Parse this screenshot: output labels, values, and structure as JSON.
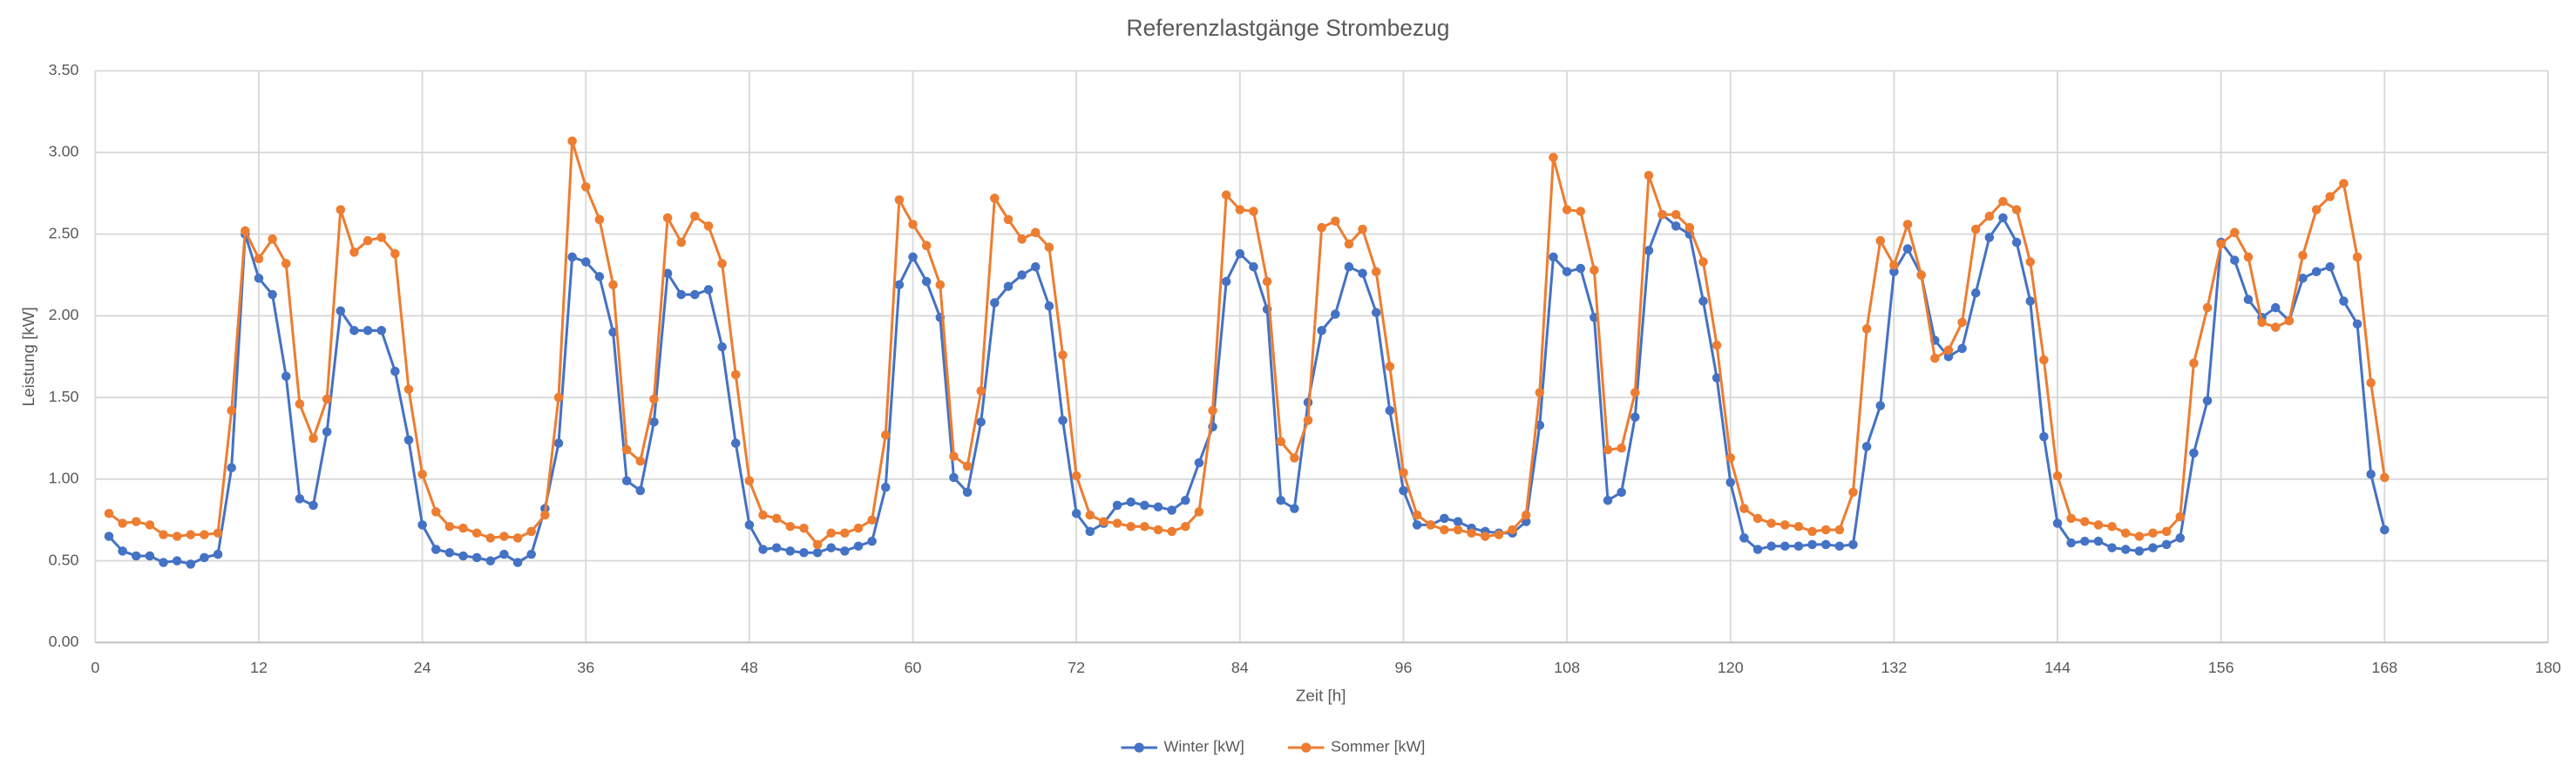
{
  "chart_data": {
    "type": "line",
    "title": "Referenzlastgänge Strombezug",
    "x_label": "Zeit [h]",
    "y_label": "Leistung [kW]",
    "x": [
      1,
      2,
      3,
      4,
      5,
      6,
      7,
      8,
      9,
      10,
      11,
      12,
      13,
      14,
      15,
      16,
      17,
      18,
      19,
      20,
      21,
      22,
      23,
      24,
      25,
      26,
      27,
      28,
      29,
      30,
      31,
      32,
      33,
      34,
      35,
      36,
      37,
      38,
      39,
      40,
      41,
      42,
      43,
      44,
      45,
      46,
      47,
      48,
      49,
      50,
      51,
      52,
      53,
      54,
      55,
      56,
      57,
      58,
      59,
      60,
      61,
      62,
      63,
      64,
      65,
      66,
      67,
      68,
      69,
      70,
      71,
      72,
      73,
      74,
      75,
      76,
      77,
      78,
      79,
      80,
      81,
      82,
      83,
      84,
      85,
      86,
      87,
      88,
      89,
      90,
      91,
      92,
      93,
      94,
      95,
      96,
      97,
      98,
      99,
      100,
      101,
      102,
      103,
      104,
      105,
      106,
      107,
      108,
      109,
      110,
      111,
      112,
      113,
      114,
      115,
      116,
      117,
      118,
      119,
      120,
      121,
      122,
      123,
      124,
      125,
      126,
      127,
      128,
      129,
      130,
      131,
      132,
      133,
      134,
      135,
      136,
      137,
      138,
      139,
      140,
      141,
      142,
      143,
      144,
      145,
      146,
      147,
      148,
      149,
      150,
      151,
      152,
      153,
      154,
      155,
      156,
      157,
      158,
      159,
      160,
      161,
      162,
      163,
      164,
      165,
      166,
      167,
      168
    ],
    "series": [
      {
        "name": "Winter [kW]",
        "color": "#4472c4",
        "values": [
          0.65,
          0.56,
          0.53,
          0.53,
          0.49,
          0.5,
          0.48,
          0.52,
          0.54,
          1.07,
          2.5,
          2.23,
          2.13,
          1.63,
          0.88,
          0.84,
          1.29,
          2.03,
          1.91,
          1.91,
          1.91,
          1.66,
          1.24,
          0.72,
          0.57,
          0.55,
          0.53,
          0.52,
          0.5,
          0.54,
          0.49,
          0.54,
          0.82,
          1.22,
          2.36,
          2.33,
          2.24,
          1.9,
          0.99,
          0.93,
          1.35,
          2.26,
          2.13,
          2.13,
          2.16,
          1.81,
          1.22,
          0.72,
          0.57,
          0.58,
          0.56,
          0.55,
          0.55,
          0.58,
          0.56,
          0.59,
          0.62,
          0.95,
          2.19,
          2.36,
          2.21,
          1.99,
          1.01,
          0.92,
          1.35,
          2.08,
          2.18,
          2.25,
          2.3,
          2.06,
          1.36,
          0.79,
          0.68,
          0.73,
          0.84,
          0.86,
          0.84,
          0.83,
          0.81,
          0.87,
          1.1,
          1.32,
          2.21,
          2.38,
          2.3,
          2.04,
          0.87,
          0.82,
          1.47,
          1.91,
          2.01,
          2.3,
          2.26,
          2.02,
          1.42,
          0.93,
          0.72,
          0.72,
          0.76,
          0.74,
          0.7,
          0.68,
          0.67,
          0.67,
          0.74,
          1.33,
          2.36,
          2.27,
          2.29,
          1.99,
          0.87,
          0.92,
          1.38,
          2.4,
          2.62,
          2.55,
          2.5,
          2.09,
          1.62,
          0.98,
          0.64,
          0.57,
          0.59,
          0.59,
          0.59,
          0.6,
          0.6,
          0.59,
          0.6,
          1.2,
          1.45,
          2.27,
          2.41,
          2.25,
          1.85,
          1.75,
          1.8,
          2.14,
          2.48,
          2.6,
          2.45,
          2.09,
          1.26,
          0.73,
          0.61,
          0.62,
          0.62,
          0.58,
          0.57,
          0.56,
          0.58,
          0.6,
          0.64,
          1.16,
          1.48,
          2.45,
          2.34,
          2.1,
          1.99,
          2.05,
          1.97,
          2.23,
          2.27,
          2.3,
          2.09,
          1.95,
          1.03,
          0.69
        ]
      },
      {
        "name": "Sommer [kW]",
        "color": "#ed7d31",
        "values": [
          0.79,
          0.73,
          0.74,
          0.72,
          0.66,
          0.65,
          0.66,
          0.66,
          0.67,
          1.42,
          2.52,
          2.35,
          2.47,
          2.32,
          1.46,
          1.25,
          1.49,
          2.65,
          2.39,
          2.46,
          2.48,
          2.38,
          1.55,
          1.03,
          0.8,
          0.71,
          0.7,
          0.67,
          0.64,
          0.65,
          0.64,
          0.68,
          0.78,
          1.5,
          3.07,
          2.79,
          2.59,
          2.19,
          1.18,
          1.11,
          1.49,
          2.6,
          2.45,
          2.61,
          2.55,
          2.32,
          1.64,
          0.99,
          0.78,
          0.76,
          0.71,
          0.7,
          0.6,
          0.67,
          0.67,
          0.7,
          0.75,
          1.27,
          2.71,
          2.56,
          2.43,
          2.19,
          1.14,
          1.08,
          1.54,
          2.72,
          2.59,
          2.47,
          2.51,
          2.42,
          1.76,
          1.02,
          0.78,
          0.74,
          0.73,
          0.71,
          0.71,
          0.69,
          0.68,
          0.71,
          0.8,
          1.42,
          2.74,
          2.65,
          2.64,
          2.21,
          1.23,
          1.13,
          1.36,
          2.54,
          2.58,
          2.44,
          2.53,
          2.27,
          1.69,
          1.04,
          0.78,
          0.72,
          0.69,
          0.69,
          0.67,
          0.65,
          0.66,
          0.69,
          0.78,
          1.53,
          2.97,
          2.65,
          2.64,
          2.28,
          1.18,
          1.19,
          1.53,
          2.86,
          2.62,
          2.62,
          2.54,
          2.33,
          1.82,
          1.13,
          0.82,
          0.76,
          0.73,
          0.72,
          0.71,
          0.68,
          0.69,
          0.69,
          0.92,
          1.92,
          2.46,
          2.31,
          2.56,
          2.25,
          1.74,
          1.79,
          1.96,
          2.53,
          2.61,
          2.7,
          2.65,
          2.33,
          1.73,
          1.02,
          0.76,
          0.74,
          0.72,
          0.71,
          0.67,
          0.65,
          0.67,
          0.68,
          0.77,
          1.71,
          2.05,
          2.44,
          2.51,
          2.36,
          1.96,
          1.93,
          1.97,
          2.37,
          2.65,
          2.73,
          2.81,
          2.36,
          1.59,
          1.01
        ]
      }
    ],
    "xlim": [
      0,
      180
    ],
    "xticks": [
      0,
      12,
      24,
      36,
      48,
      60,
      72,
      84,
      96,
      108,
      120,
      132,
      144,
      156,
      168,
      180
    ],
    "ylim": [
      0,
      3.5
    ],
    "yticks": [
      {
        "value": 0,
        "label": "0.00"
      },
      {
        "value": 0.5,
        "label": "0.50"
      },
      {
        "value": 1,
        "label": "1.00"
      },
      {
        "value": 1.5,
        "label": "1.50"
      },
      {
        "value": 2,
        "label": "2.00"
      },
      {
        "value": 2.5,
        "label": "2.50"
      },
      {
        "value": 3,
        "label": "3.00"
      },
      {
        "value": 3.5,
        "label": "3.50"
      }
    ],
    "grid": true,
    "legend": "bottom"
  }
}
